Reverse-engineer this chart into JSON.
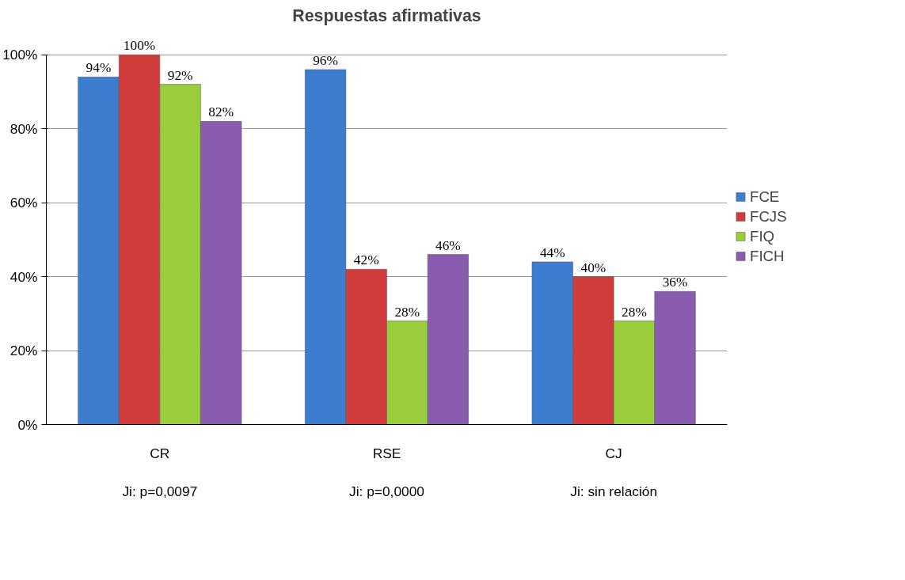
{
  "chart_data": {
    "type": "bar",
    "title": "Respuestas afirmativas",
    "categories": [
      "CR",
      "RSE",
      "CJ"
    ],
    "annotations": [
      "Ji: p=0,0097",
      "Ji: p=0,0000",
      "Ji: sin relación"
    ],
    "series": [
      {
        "name": "FCE",
        "color": "#3c7dd0",
        "values": [
          94,
          96,
          44
        ],
        "value_labels": [
          "94%",
          "96%",
          "44%"
        ]
      },
      {
        "name": "FCJS",
        "color": "#d03c3c",
        "values": [
          100,
          42,
          40
        ],
        "value_labels": [
          "100%",
          "42%",
          "40%"
        ]
      },
      {
        "name": "FIQ",
        "color": "#9acd3c",
        "values": [
          92,
          28,
          28
        ],
        "value_labels": [
          "92%",
          "28%",
          "28%"
        ]
      },
      {
        "name": "FICH",
        "color": "#8a5cb0",
        "values": [
          82,
          46,
          36
        ],
        "value_labels": [
          "82%",
          "46%",
          "36%"
        ]
      }
    ],
    "ylim": [
      0,
      100
    ],
    "yticks": [
      {
        "value": 0,
        "label": "0%"
      },
      {
        "value": 20,
        "label": "20%"
      },
      {
        "value": 40,
        "label": "40%"
      },
      {
        "value": 60,
        "label": "60%"
      },
      {
        "value": 80,
        "label": "80%"
      },
      {
        "value": 100,
        "label": "100%"
      }
    ],
    "grid": "y",
    "legend": "right"
  }
}
